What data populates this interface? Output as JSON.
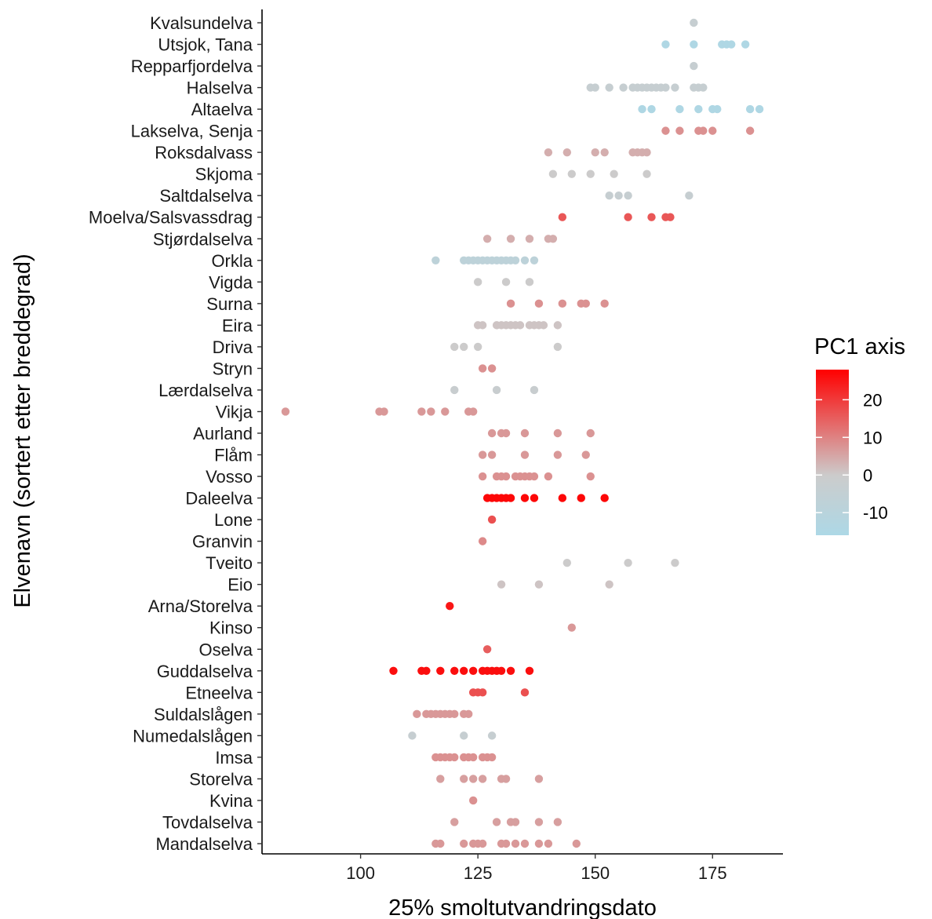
{
  "chart_data": {
    "type": "scatter",
    "xlabel": "25% smoltutvandringsdato",
    "ylabel": "Elvenavn (sortert etter breddegrad)",
    "xlim": [
      79,
      190
    ],
    "xticks": [
      100,
      125,
      150,
      175
    ],
    "grid": false,
    "legend": {
      "title": "PC1 axis",
      "placement": "right",
      "ticks": [
        20,
        10,
        0,
        -10
      ],
      "range": [
        -16,
        28
      ],
      "colors": {
        "low": "#add8e6",
        "mid": "#cccccc",
        "high": "#ff0000"
      }
    },
    "rivers": [
      {
        "name": "Kvalsundelva",
        "pc1": -3,
        "x": [
          171
        ]
      },
      {
        "name": "Utsjok, Tana",
        "pc1": -15,
        "x": [
          165,
          171,
          177,
          178,
          179,
          182
        ]
      },
      {
        "name": "Repparfjordelva",
        "pc1": -3,
        "x": [
          171
        ]
      },
      {
        "name": "Halselva",
        "pc1": -3,
        "x": [
          149,
          150,
          153,
          156,
          158,
          159,
          160,
          161,
          162,
          163,
          164,
          165,
          167,
          171,
          172,
          173
        ]
      },
      {
        "name": "Altaelva",
        "pc1": -15,
        "x": [
          160,
          162,
          168,
          172,
          175,
          176,
          183,
          185
        ]
      },
      {
        "name": "Lakselva, Senja",
        "pc1": 8,
        "x": [
          165,
          168,
          172,
          173,
          175,
          183
        ]
      },
      {
        "name": "Roksdalvass",
        "pc1": 4,
        "x": [
          140,
          144,
          150,
          152,
          158,
          159,
          160,
          161
        ]
      },
      {
        "name": "Skjoma",
        "pc1": 0,
        "x": [
          141,
          145,
          149,
          154,
          161
        ]
      },
      {
        "name": "Saltdalselva",
        "pc1": -3,
        "x": [
          153,
          155,
          157,
          170
        ]
      },
      {
        "name": "Moelva/Salsvassdrag",
        "pc1": 16,
        "x": [
          143,
          157,
          162,
          165,
          166
        ]
      },
      {
        "name": "Stjørdalselva",
        "pc1": 4,
        "x": [
          127,
          132,
          136,
          140,
          141
        ]
      },
      {
        "name": "Orkla",
        "pc1": -8,
        "x": [
          116,
          122,
          123,
          124,
          125,
          126,
          127,
          128,
          129,
          130,
          131,
          132,
          133,
          135,
          137
        ]
      },
      {
        "name": "Vigda",
        "pc1": 0,
        "x": [
          125,
          131,
          136
        ]
      },
      {
        "name": "Surna",
        "pc1": 8,
        "x": [
          132,
          138,
          143,
          147,
          148,
          152
        ]
      },
      {
        "name": "Eira",
        "pc1": 1,
        "x": [
          125,
          126,
          129,
          130,
          131,
          132,
          133,
          134,
          136,
          137,
          138,
          139,
          142
        ]
      },
      {
        "name": "Driva",
        "pc1": 0,
        "x": [
          120,
          122,
          125,
          142
        ]
      },
      {
        "name": "Stryn",
        "pc1": 8,
        "x": [
          126,
          128
        ]
      },
      {
        "name": "Lærdalselva",
        "pc1": -2,
        "x": [
          120,
          129,
          137
        ]
      },
      {
        "name": "Vikja",
        "pc1": 7,
        "x": [
          84,
          104,
          105,
          113,
          115,
          118,
          123,
          124
        ]
      },
      {
        "name": "Aurland",
        "pc1": 7,
        "x": [
          128,
          130,
          131,
          135,
          142,
          149
        ]
      },
      {
        "name": "Flåm",
        "pc1": 7,
        "x": [
          126,
          128,
          135,
          142,
          148
        ]
      },
      {
        "name": "Vosso",
        "pc1": 8,
        "x": [
          126,
          129,
          130,
          131,
          133,
          134,
          135,
          136,
          137,
          140,
          149
        ]
      },
      {
        "name": "Daleelva",
        "pc1": 27,
        "x": [
          127,
          128,
          129,
          130,
          131,
          132,
          135,
          137,
          143,
          147,
          152
        ]
      },
      {
        "name": "Lone",
        "pc1": 17,
        "x": [
          128
        ]
      },
      {
        "name": "Granvin",
        "pc1": 9,
        "x": [
          126
        ]
      },
      {
        "name": "Tveito",
        "pc1": 0,
        "x": [
          144,
          157,
          167
        ]
      },
      {
        "name": "Eio",
        "pc1": 1,
        "x": [
          130,
          138,
          153
        ]
      },
      {
        "name": "Arna/Storelva",
        "pc1": 25,
        "x": [
          119
        ]
      },
      {
        "name": "Kinso",
        "pc1": 7,
        "x": [
          145
        ]
      },
      {
        "name": "Oselva",
        "pc1": 15,
        "x": [
          127
        ]
      },
      {
        "name": "Guddalselva",
        "pc1": 26,
        "x": [
          107,
          113,
          114,
          117,
          120,
          122,
          124,
          126,
          127,
          128,
          129,
          130,
          132,
          136
        ]
      },
      {
        "name": "Etneelva",
        "pc1": 17,
        "x": [
          124,
          125,
          126,
          135
        ]
      },
      {
        "name": "Suldalslågen",
        "pc1": 7,
        "x": [
          112,
          114,
          115,
          116,
          117,
          118,
          119,
          120,
          122,
          123
        ]
      },
      {
        "name": "Numedalslågen",
        "pc1": -3,
        "x": [
          111,
          122,
          128
        ]
      },
      {
        "name": "Imsa",
        "pc1": 8,
        "x": [
          116,
          117,
          118,
          119,
          120,
          122,
          123,
          124,
          126,
          127,
          128
        ]
      },
      {
        "name": "Storelva",
        "pc1": 6,
        "x": [
          117,
          122,
          124,
          126,
          130,
          131,
          138
        ]
      },
      {
        "name": "Kvina",
        "pc1": 8,
        "x": [
          124
        ]
      },
      {
        "name": "Tovdalselva",
        "pc1": 6,
        "x": [
          120,
          129,
          132,
          133,
          138,
          142
        ]
      },
      {
        "name": "Mandalselva",
        "pc1": 7,
        "x": [
          116,
          117,
          122,
          124,
          125,
          126,
          130,
          131,
          133,
          135,
          138,
          140,
          146
        ]
      }
    ]
  }
}
